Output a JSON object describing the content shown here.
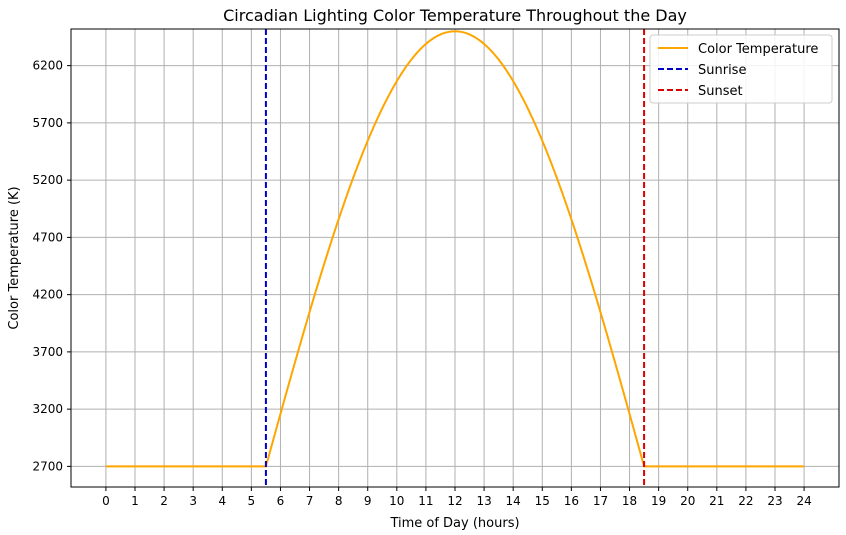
{
  "chart_data": {
    "type": "line",
    "title": "Circadian Lighting Color Temperature Throughout the Day",
    "xlabel": "Time of Day (hours)",
    "ylabel": "Color Temperature (K)",
    "xlim": [
      -1.2,
      25.2
    ],
    "ylim": [
      2520,
      6520
    ],
    "x_ticks": [
      "0",
      "1",
      "2",
      "3",
      "4",
      "5",
      "6",
      "7",
      "8",
      "9",
      "10",
      "11",
      "12",
      "13",
      "14",
      "15",
      "16",
      "17",
      "18",
      "19",
      "20",
      "21",
      "22",
      "23",
      "24"
    ],
    "y_ticks": [
      "2700",
      "3200",
      "3700",
      "4200",
      "4700",
      "5200",
      "5700",
      "6200"
    ],
    "grid": true,
    "legend_position": "top-right",
    "series": [
      {
        "name": "Color Temperature",
        "color": "#ffa500",
        "x": [
          0,
          5.5,
          6,
          7,
          8,
          9,
          10,
          11,
          12,
          13,
          14,
          15,
          16,
          17,
          18,
          18.5,
          24
        ],
        "y": [
          2700,
          2700,
          3134,
          3997,
          4821,
          5540,
          6083,
          6410,
          6500,
          6410,
          6083,
          5540,
          4821,
          3997,
          3134,
          2700,
          2700
        ]
      }
    ],
    "vlines": [
      {
        "name": "Sunrise",
        "x": 5.5,
        "color": "#0000cc",
        "style": "dashed"
      },
      {
        "name": "Sunset",
        "x": 18.5,
        "color": "#dd0000",
        "style": "dashed"
      }
    ]
  }
}
